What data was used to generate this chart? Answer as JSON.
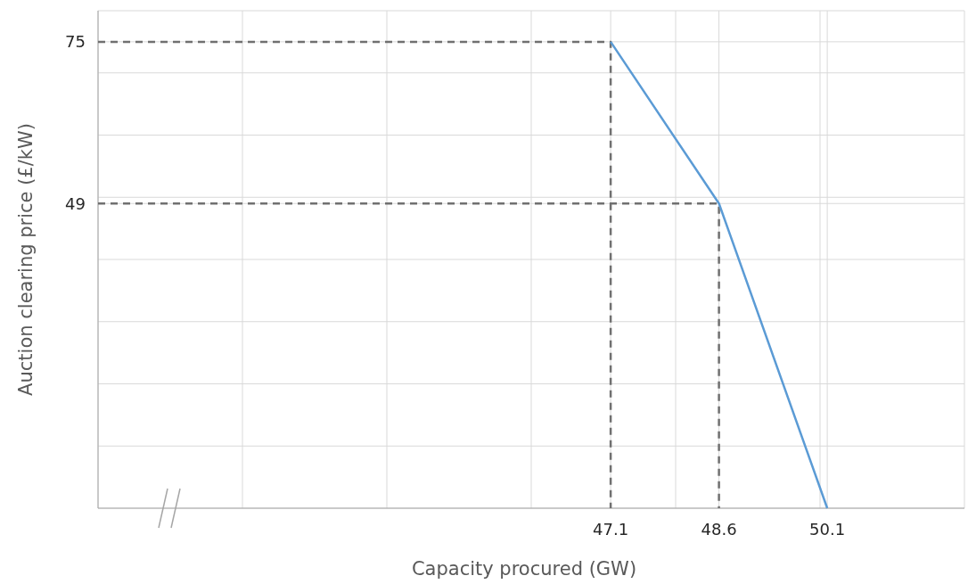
{
  "chart_data": {
    "type": "line",
    "xlabel": "Capacity procured  (GW)",
    "ylabel": "Auction clearing price (£/kW)",
    "xlim": [
      40,
      52
    ],
    "ylim": [
      0,
      80
    ],
    "xticks": [
      {
        "value": 40,
        "label": null
      },
      {
        "value": 42,
        "label": null
      },
      {
        "value": 44,
        "label": null
      },
      {
        "value": 46,
        "label": null
      },
      47.1,
      {
        "value": 48,
        "label": null
      },
      48.6,
      {
        "value": 50,
        "label": null
      },
      50.1,
      {
        "value": 52,
        "label": null
      }
    ],
    "yticks": [
      {
        "value": 0,
        "label": null
      },
      {
        "value": 10,
        "label": null
      },
      {
        "value": 20,
        "label": null
      },
      {
        "value": 30,
        "label": null
      },
      {
        "value": 40,
        "label": null
      },
      49,
      {
        "value": 50,
        "label": null
      },
      {
        "value": 60,
        "label": null
      },
      {
        "value": 70,
        "label": null
      },
      75,
      {
        "value": 80,
        "label": null
      }
    ],
    "grid": true,
    "marker": "none",
    "series": [
      {
        "color": "#707070",
        "line_style": "dashed",
        "x": [
          40,
          47.1,
          47.1
        ],
        "values": [
          75,
          75,
          0
        ]
      },
      {
        "color": "#707070",
        "line_style": "dashed",
        "x": [
          40,
          48.6,
          48.6
        ],
        "values": [
          49,
          49,
          0
        ]
      },
      {
        "color": "#5b9bd5",
        "line_style": "solid",
        "x": [
          47.1,
          48.6,
          50.1
        ],
        "values": [
          75,
          49,
          0
        ]
      }
    ]
  }
}
